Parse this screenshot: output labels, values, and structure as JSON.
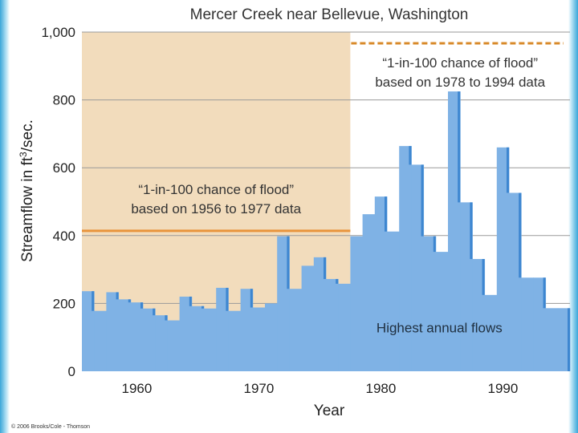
{
  "chart_data": {
    "type": "bar",
    "title": "Mercer Creek near Bellevue, Washington",
    "xlabel": "Year",
    "ylabel": "Streamflow in ft3/sec.",
    "ylabel_parts": [
      "Streamflow in ft",
      "3",
      "/sec."
    ],
    "xlim": [
      1955.5,
      1995.5
    ],
    "ylim": [
      0,
      1000
    ],
    "x_ticks": [
      1960,
      1970,
      1980,
      1990
    ],
    "y_ticks": [
      0,
      200,
      400,
      600,
      800,
      1000
    ],
    "y_tick_labels": [
      "0",
      "200",
      "400",
      "600",
      "800",
      "1,000"
    ],
    "grid": true,
    "shaded_period": [
      1955.5,
      1977.5
    ],
    "series": [
      {
        "name": "Highest annual flows",
        "x": [
          1956,
          1957,
          1958,
          1959,
          1960,
          1961,
          1962,
          1963,
          1964,
          1965,
          1966,
          1967,
          1968,
          1969,
          1970,
          1971,
          1972,
          1973,
          1974,
          1975,
          1976,
          1977,
          1978,
          1979,
          1980,
          1981,
          1982,
          1983,
          1984,
          1985,
          1986,
          1987,
          1988,
          1989,
          1990,
          1991,
          1992,
          1993,
          1994,
          1995
        ],
        "values": [
          236,
          178,
          233,
          212,
          203,
          185,
          165,
          150,
          220,
          192,
          185,
          246,
          178,
          243,
          188,
          200,
          398,
          243,
          311,
          336,
          272,
          258,
          398,
          463,
          515,
          412,
          664,
          609,
          398,
          352,
          825,
          498,
          331,
          225,
          660,
          526,
          276,
          276,
          186,
          186
        ]
      }
    ],
    "reference_lines": [
      {
        "label_lines": [
          "“1-in-100 chance of flood”",
          "based on 1956 to 1977 data"
        ],
        "y": 414,
        "x_range": [
          1955.5,
          1977.5
        ],
        "color": "#e8943c",
        "style": "solid"
      },
      {
        "label_lines": [
          "“1-in-100 chance of flood”",
          "based on 1978 to 1994 data"
        ],
        "y": 967,
        "x_range": [
          1977.5,
          1995.5
        ],
        "color": "#d88a2a",
        "style": "dashed"
      }
    ],
    "annotations": [
      "Highest annual flows"
    ],
    "colors": {
      "bars": "#7fb2e5",
      "bar_edge": "#3d86d0",
      "shade": "#f2dcbc",
      "grid": "#9a9a9a"
    }
  },
  "copyright": "© 2006 Brooks/Cole - Thomson"
}
